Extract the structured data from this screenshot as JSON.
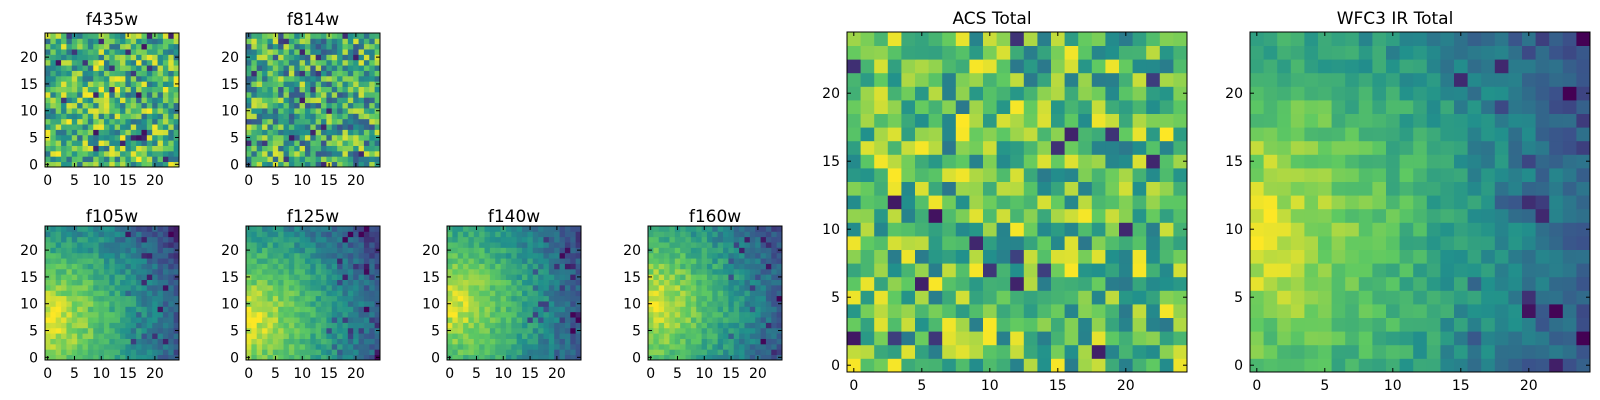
{
  "figure": {
    "background": "#ffffff",
    "frame_color": "#000000",
    "colormap": "viridis",
    "colormap_stops": [
      "#440154",
      "#3b528b",
      "#21918c",
      "#5ec962",
      "#fde725"
    ]
  },
  "chart_data": [
    {
      "type": "heatmap",
      "title": "f435w",
      "title_key": "t0",
      "grid_size": 25,
      "xlim": [
        -0.5,
        24.5
      ],
      "ylim": [
        -0.5,
        24.5
      ],
      "xticks": [
        0,
        5,
        10,
        15,
        20
      ],
      "yticks": [
        0,
        5,
        10,
        15,
        20
      ],
      "pattern": "noise",
      "value_range": [
        0.35,
        1.0
      ],
      "grid": false
    },
    {
      "type": "heatmap",
      "title": "f814w",
      "title_key": "t1",
      "grid_size": 25,
      "xlim": [
        -0.5,
        24.5
      ],
      "ylim": [
        -0.5,
        24.5
      ],
      "xticks": [
        0,
        5,
        10,
        15,
        20
      ],
      "yticks": [
        0,
        5,
        10,
        15,
        20
      ],
      "pattern": "noise",
      "value_range": [
        0.25,
        0.95
      ],
      "grid": false
    },
    {
      "type": "heatmap",
      "title": "f105w",
      "title_key": "t2",
      "grid_size": 25,
      "xlim": [
        -0.5,
        24.5
      ],
      "ylim": [
        -0.5,
        24.5
      ],
      "xticks": [
        0,
        5,
        10,
        15,
        20
      ],
      "yticks": [
        0,
        5,
        10,
        15,
        20
      ],
      "pattern": "gradient",
      "peak": [
        0,
        7
      ],
      "grid": false
    },
    {
      "type": "heatmap",
      "title": "f125w",
      "title_key": "t3",
      "grid_size": 25,
      "xlim": [
        -0.5,
        24.5
      ],
      "ylim": [
        -0.5,
        24.5
      ],
      "xticks": [
        0,
        5,
        10,
        15,
        20
      ],
      "yticks": [
        0,
        5,
        10,
        15,
        20
      ],
      "pattern": "gradient",
      "peak": [
        0,
        7
      ],
      "grid": false
    },
    {
      "type": "heatmap",
      "title": "f140w",
      "title_key": "t4",
      "grid_size": 25,
      "xlim": [
        -0.5,
        24.5
      ],
      "ylim": [
        -0.5,
        24.5
      ],
      "xticks": [
        0,
        5,
        10,
        15,
        20
      ],
      "yticks": [
        0,
        5,
        10,
        15,
        20
      ],
      "pattern": "gradient",
      "peak": [
        0,
        10
      ],
      "grid": false
    },
    {
      "type": "heatmap",
      "title": "f160w",
      "title_key": "t5",
      "grid_size": 25,
      "xlim": [
        -0.5,
        24.5
      ],
      "ylim": [
        -0.5,
        24.5
      ],
      "xticks": [
        0,
        5,
        10,
        15,
        20
      ],
      "yticks": [
        0,
        5,
        10,
        15,
        20
      ],
      "pattern": "gradient",
      "peak": [
        0,
        10
      ],
      "grid": false
    },
    {
      "type": "heatmap",
      "title": "ACS Total",
      "title_key": "t6",
      "grid_size": 25,
      "xlim": [
        -0.5,
        24.5
      ],
      "ylim": [
        -0.5,
        24.5
      ],
      "xticks": [
        0,
        5,
        10,
        15,
        20
      ],
      "yticks": [
        0,
        5,
        10,
        15,
        20
      ],
      "pattern": "noise",
      "value_range": [
        0.4,
        1.0
      ],
      "grid": false
    },
    {
      "type": "heatmap",
      "title": "WFC3 IR Total",
      "title_key": "t7",
      "grid_size": 25,
      "xlim": [
        -0.5,
        24.5
      ],
      "ylim": [
        -0.5,
        24.5
      ],
      "xticks": [
        0,
        5,
        10,
        15,
        20
      ],
      "yticks": [
        0,
        5,
        10,
        15,
        20
      ],
      "pattern": "gradient",
      "peak": [
        0,
        10
      ],
      "grid": false
    }
  ],
  "titles": {
    "t0": "f435w",
    "t1": "f814w",
    "t2": "f105w",
    "t3": "f125w",
    "t4": "f140w",
    "t5": "f160w",
    "t6": "ACS Total",
    "t7": "WFC3 IR Total"
  }
}
